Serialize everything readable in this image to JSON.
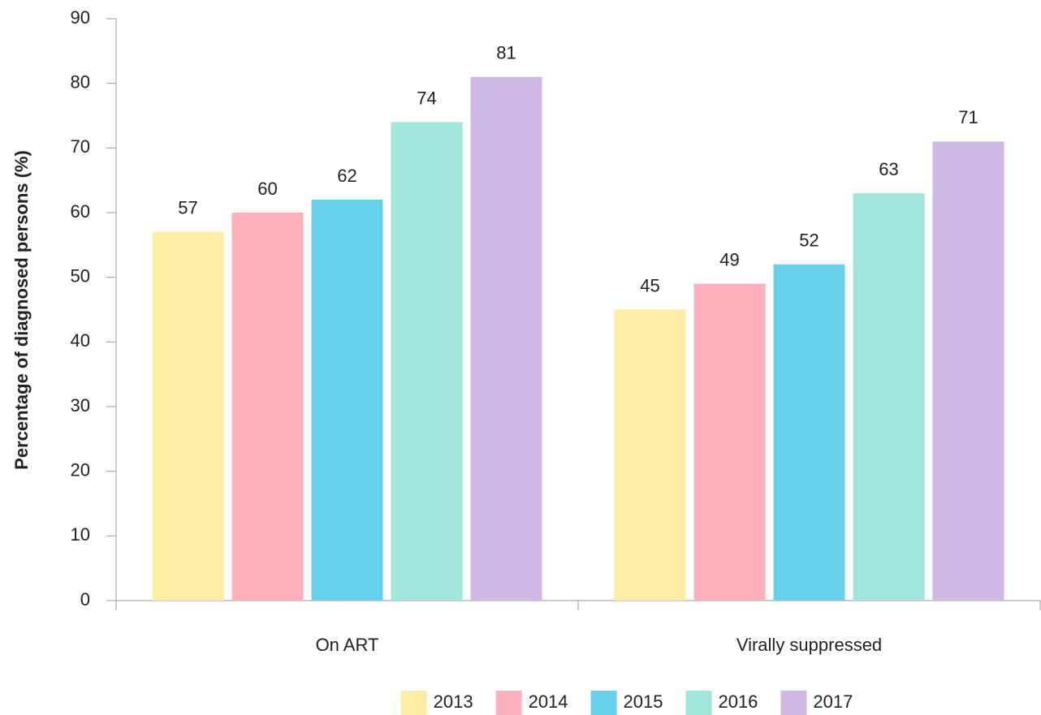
{
  "chart_data": {
    "type": "bar",
    "ylabel": "Percentage of diagnosed persons (%)",
    "categories": [
      "On ART",
      "Virally suppressed"
    ],
    "series": [
      {
        "name": "2013",
        "color": "#fdeca3",
        "values": [
          57,
          45
        ]
      },
      {
        "name": "2014",
        "color": "#feb0bd",
        "values": [
          60,
          49
        ]
      },
      {
        "name": "2015",
        "color": "#66d0eb",
        "values": [
          62,
          52
        ]
      },
      {
        "name": "2016",
        "color": "#a0e6da",
        "values": [
          74,
          63
        ]
      },
      {
        "name": "2017",
        "color": "#d0b8e4",
        "values": [
          81,
          71
        ]
      }
    ],
    "ylim": [
      0,
      90
    ],
    "yticks": [
      0,
      10,
      20,
      30,
      40,
      50,
      60,
      70,
      80,
      90
    ],
    "grid": false,
    "legend": "bottom"
  }
}
